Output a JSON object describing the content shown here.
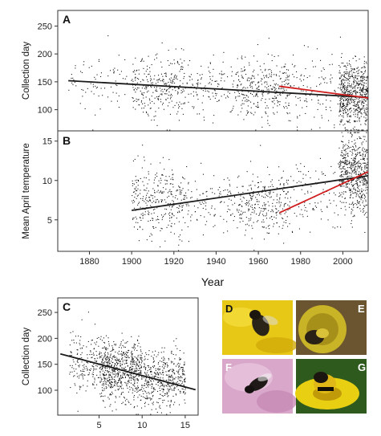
{
  "chart_data": [
    {
      "panel": "A",
      "type": "scatter",
      "ylabel": "Collection day",
      "xlim": [
        1865,
        2012
      ],
      "ylim": [
        62,
        278
      ],
      "yticks": [
        100,
        150,
        200,
        250
      ],
      "grid": false,
      "point_clusters": [
        {
          "x": [
            1870,
            1873
          ],
          "y_center": 155,
          "y_sd": 7,
          "n": 8
        },
        {
          "x": [
            1873,
            1900
          ],
          "y_center": 150,
          "y_sd": 28,
          "n": 70
        },
        {
          "x": [
            1900,
            1925
          ],
          "y_center": 145,
          "y_sd": 27,
          "n": 300
        },
        {
          "x": [
            1925,
            1950
          ],
          "y_center": 140,
          "y_sd": 25,
          "n": 140
        },
        {
          "x": [
            1950,
            1975
          ],
          "y_center": 140,
          "y_sd": 28,
          "n": 320
        },
        {
          "x": [
            1975,
            1998
          ],
          "y_center": 135,
          "y_sd": 26,
          "n": 110
        },
        {
          "x": [
            1998,
            2012
          ],
          "y_center": 128,
          "y_sd": 30,
          "n": 650
        }
      ],
      "fits": [
        {
          "x": [
            1870,
            2012
          ],
          "y": [
            152,
            122
          ],
          "color": "#1a1a1a"
        },
        {
          "x": [
            1970,
            2012
          ],
          "y": [
            142,
            121
          ],
          "color": "#d01c1c"
        }
      ],
      "label": "A"
    },
    {
      "panel": "B",
      "type": "scatter",
      "ylabel": "Mean April temperature",
      "xlim": [
        1865,
        2012
      ],
      "ylim": [
        1,
        16.3
      ],
      "yticks": [
        5,
        10,
        15
      ],
      "xticks": [
        1880,
        1900,
        1920,
        1940,
        1960,
        1980,
        2000
      ],
      "xlabel": "Year",
      "grid": false,
      "point_clusters": [
        {
          "x": [
            1900,
            1925
          ],
          "y_center": 7.5,
          "y_sd": 2.2,
          "n": 320
        },
        {
          "x": [
            1925,
            1950
          ],
          "y_center": 7.5,
          "y_sd": 1.8,
          "n": 120
        },
        {
          "x": [
            1950,
            1975
          ],
          "y_center": 7.0,
          "y_sd": 2.0,
          "n": 280
        },
        {
          "x": [
            1975,
            1998
          ],
          "y_center": 8.0,
          "y_sd": 2.2,
          "n": 100
        },
        {
          "x": [
            1998,
            2012
          ],
          "y_center": 11.0,
          "y_sd": 2.6,
          "n": 600
        }
      ],
      "fits": [
        {
          "x": [
            1900,
            2012
          ],
          "y": [
            6.2,
            10.6
          ],
          "color": "#1a1a1a"
        },
        {
          "x": [
            1970,
            2012
          ],
          "y": [
            5.9,
            11.1
          ],
          "color": "#d01c1c"
        }
      ],
      "label": "B"
    },
    {
      "panel": "C",
      "type": "scatter",
      "ylabel": "Collection day",
      "xlim": [
        0.2,
        16.5
      ],
      "ylim": [
        52,
        278
      ],
      "yticks": [
        100,
        150,
        200,
        250
      ],
      "xticks": [
        5,
        10,
        15
      ],
      "grid": false,
      "point_clusters": [
        {
          "x": [
            1.5,
            5
          ],
          "y_center": 150,
          "y_sd": 28,
          "n": 170
        },
        {
          "x": [
            5,
            10
          ],
          "y_center": 138,
          "y_sd": 28,
          "n": 700
        },
        {
          "x": [
            10,
            15
          ],
          "y_center": 120,
          "y_sd": 27,
          "n": 450
        }
      ],
      "fits": [
        {
          "x": [
            0.5,
            16.2
          ],
          "y": [
            170,
            101
          ],
          "color": "#1a1a1a"
        }
      ],
      "label": "C"
    }
  ],
  "photos": [
    {
      "label": "D",
      "bg": "#e8c817",
      "subject": "bee on yellow flower"
    },
    {
      "label": "E",
      "bg": "#6a5530",
      "subject": "bee on yellow flower"
    },
    {
      "label": "F",
      "bg": "#d8a7c9",
      "subject": "bee on pink flower"
    },
    {
      "label": "G",
      "bg": "#2f5a1e",
      "subject": "bee on yellow flower"
    }
  ]
}
